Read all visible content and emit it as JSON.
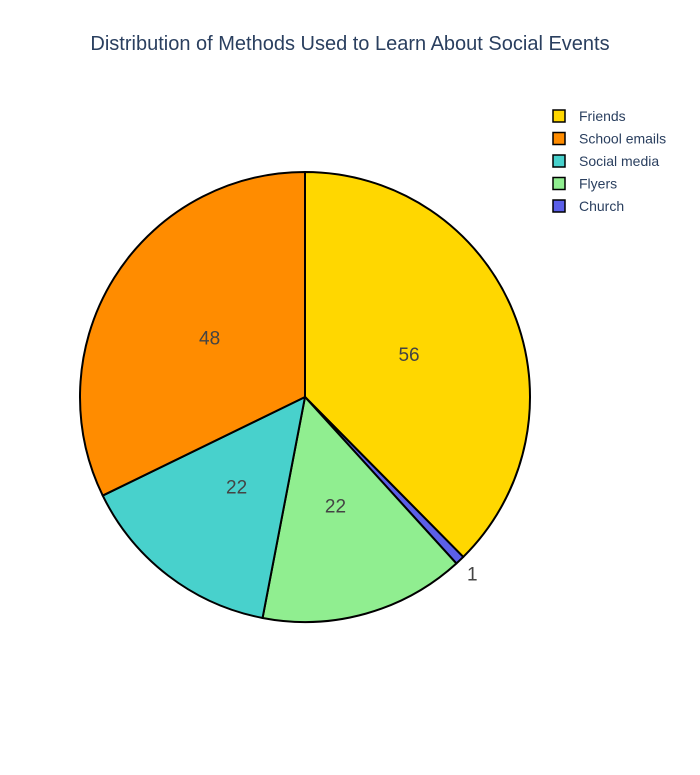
{
  "chart_data": {
    "type": "pie",
    "title": "Distribution of Methods Used to Learn About Social Events",
    "categories": [
      "Friends",
      "School emails",
      "Social media",
      "Flyers",
      "Church"
    ],
    "values": [
      56,
      48,
      22,
      22,
      1
    ],
    "slice_order": [
      "Friends",
      "Church",
      "Flyers",
      "Social media",
      "School emails"
    ],
    "colors": {
      "Friends": "#FFD700",
      "School emails": "#FF8C00",
      "Social media": "#48D1CC",
      "Flyers": "#90EE90",
      "Church": "#5B5FE8"
    },
    "start_angle_deg": 90,
    "direction": "clockwise",
    "outline_color": "#000000",
    "legend_position": "top-right"
  }
}
